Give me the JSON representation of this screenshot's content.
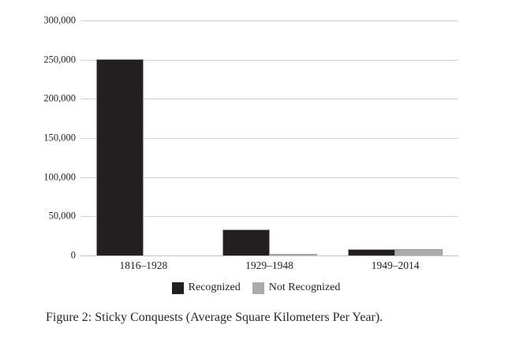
{
  "figure": {
    "caption": "Figure 2: Sticky Conquests (Average Square Kilometers Per Year)."
  },
  "chart_data": {
    "type": "bar",
    "title": "",
    "categories": [
      "1816–1928",
      "1929–1948",
      "1949–2014"
    ],
    "series": [
      {
        "name": "Recognized",
        "color": "#231f20",
        "values": [
          251000,
          33000,
          8500
        ]
      },
      {
        "name": "Not Recognized",
        "color": "#ababab",
        "values": [
          0,
          2500,
          8000
        ]
      }
    ],
    "xlabel": "",
    "ylabel": "",
    "ylim": [
      0,
      300000
    ],
    "ytick_interval": 50000,
    "ytick_labels": [
      "300,000",
      "250,000",
      "200,000",
      "150,000",
      "100,000",
      "50,000",
      "0"
    ],
    "grid": "horizontal",
    "legend_position": "bottom-center",
    "colors": {
      "background": "#ffffff",
      "gridline": "#d3d3d3",
      "bar_recognized": "#231f20",
      "bar_not_recognized": "#ababab",
      "text": "#241f20"
    }
  }
}
